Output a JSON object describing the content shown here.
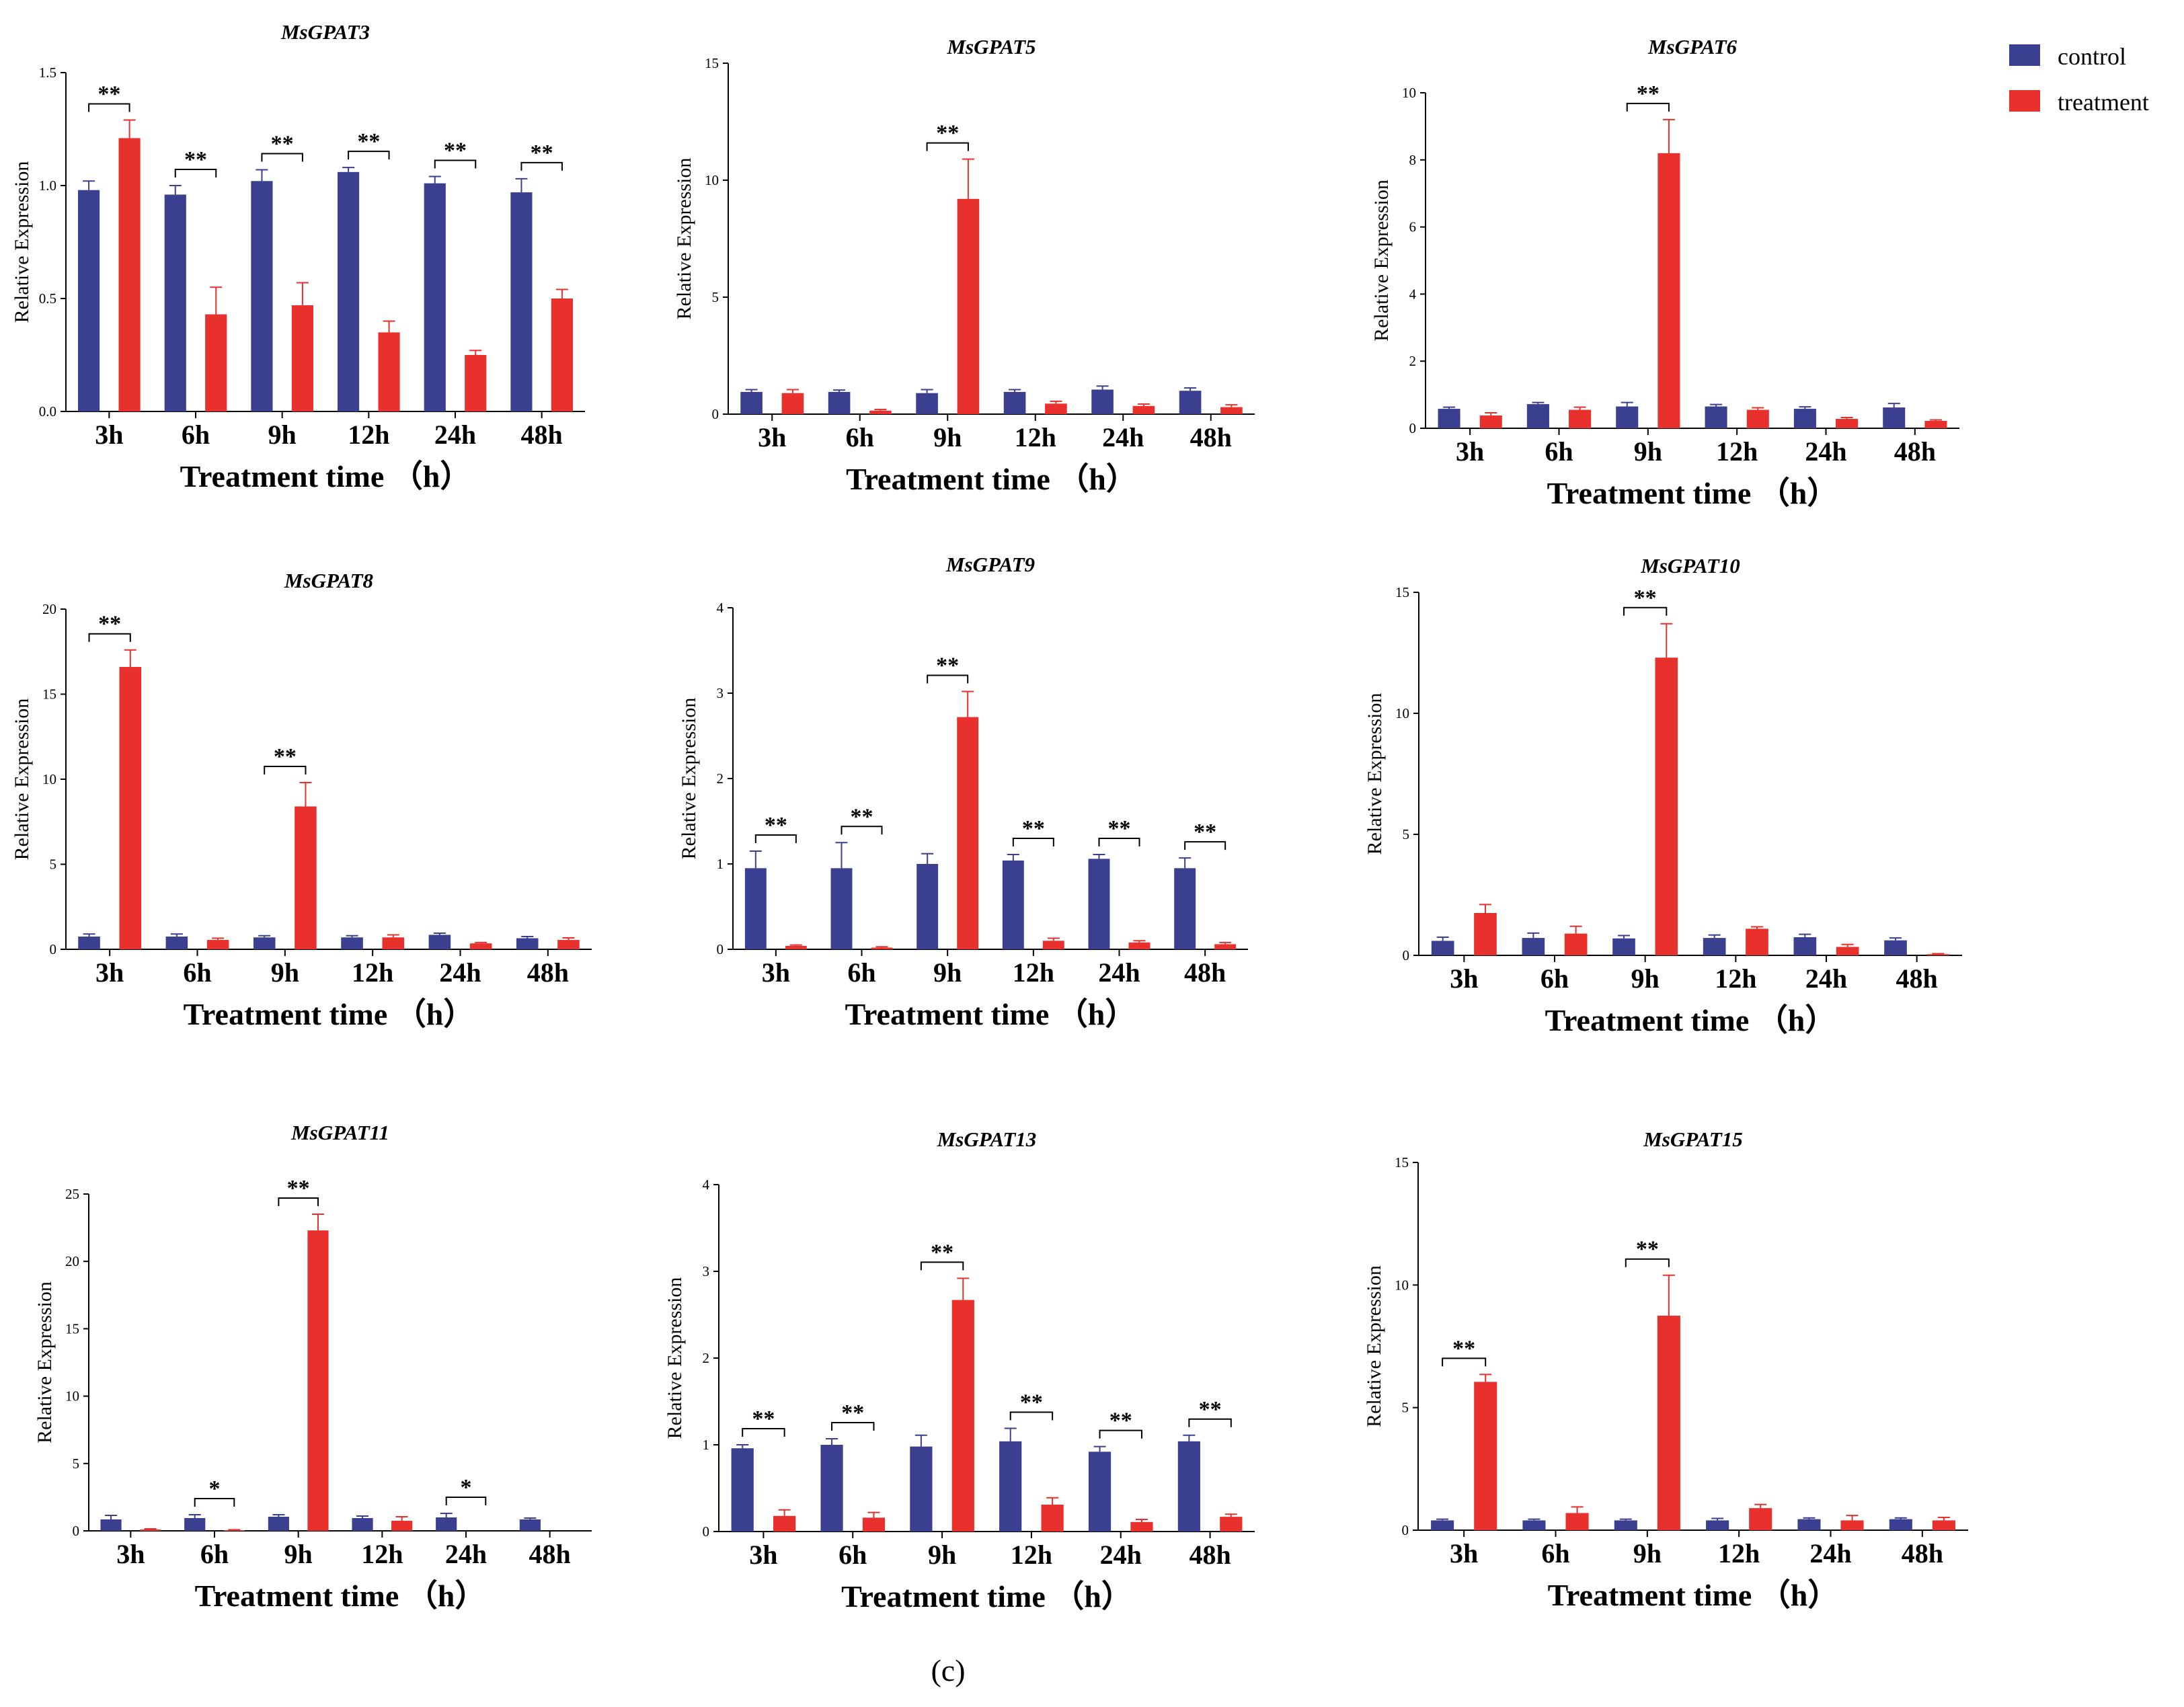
{
  "figure_label": "(c)",
  "legend": [
    {
      "name": "control",
      "color": "#3B3F8F"
    },
    {
      "name": "treatment",
      "color": "#E8312D"
    }
  ],
  "colors": {
    "control": "#3B3F8F",
    "treatment": "#E8312D",
    "axis": "#000000"
  },
  "chart_data": [
    {
      "type": "bar",
      "title": "MsGPAT3",
      "xlabel": "Treatment time （h）",
      "ylabel": "Relative Expression",
      "categories": [
        "3h",
        "6h",
        "9h",
        "12h",
        "24h",
        "48h"
      ],
      "ylim": [
        0,
        1.5
      ],
      "yticks": [
        "0.0",
        "0.5",
        "1.0",
        "1.5"
      ],
      "series": [
        {
          "name": "control",
          "values": [
            0.98,
            0.96,
            1.02,
            1.06,
            1.01,
            0.97
          ],
          "errors": [
            0.04,
            0.04,
            0.05,
            0.02,
            0.03,
            0.06
          ]
        },
        {
          "name": "treatment",
          "values": [
            1.21,
            0.43,
            0.47,
            0.35,
            0.25,
            0.5
          ],
          "errors": [
            0.08,
            0.12,
            0.1,
            0.05,
            0.02,
            0.04
          ]
        }
      ],
      "significance": [
        "**",
        "**",
        "**",
        "**",
        "**",
        "**"
      ]
    },
    {
      "type": "bar",
      "title": "MsGPAT5",
      "xlabel": "Treatment time （h）",
      "ylabel": "Relative Expression",
      "categories": [
        "3h",
        "6h",
        "9h",
        "12h",
        "24h",
        "48h"
      ],
      "ylim": [
        0,
        15
      ],
      "yticks": [
        "0",
        "5",
        "10",
        "15"
      ],
      "series": [
        {
          "name": "control",
          "values": [
            0.95,
            0.95,
            0.9,
            0.95,
            1.05,
            1.0
          ],
          "errors": [
            0.1,
            0.08,
            0.15,
            0.1,
            0.15,
            0.12
          ]
        },
        {
          "name": "treatment",
          "values": [
            0.9,
            0.15,
            9.2,
            0.45,
            0.35,
            0.3
          ],
          "errors": [
            0.15,
            0.05,
            1.7,
            0.1,
            0.08,
            0.1
          ]
        }
      ],
      "significance": [
        "",
        "",
        "**",
        "",
        "",
        ""
      ]
    },
    {
      "type": "bar",
      "title": "MsGPAT6",
      "xlabel": "Treatment time （h）",
      "ylabel": "Relative Expression",
      "categories": [
        "3h",
        "6h",
        "9h",
        "12h",
        "24h",
        "48h"
      ],
      "ylim": [
        0,
        10
      ],
      "yticks": [
        "0",
        "2",
        "4",
        "6",
        "8",
        "10"
      ],
      "series": [
        {
          "name": "control",
          "values": [
            0.58,
            0.72,
            0.65,
            0.65,
            0.58,
            0.62
          ],
          "errors": [
            0.05,
            0.05,
            0.12,
            0.06,
            0.06,
            0.12
          ]
        },
        {
          "name": "treatment",
          "values": [
            0.38,
            0.55,
            8.2,
            0.55,
            0.28,
            0.22
          ],
          "errors": [
            0.08,
            0.08,
            1.0,
            0.06,
            0.04,
            0.03
          ]
        }
      ],
      "significance": [
        "",
        "",
        "**",
        "",
        "",
        ""
      ]
    },
    {
      "type": "bar",
      "title": "MsGPAT8",
      "xlabel": "Treatment time （h）",
      "ylabel": "Relative Expression",
      "categories": [
        "3h",
        "6h",
        "9h",
        "12h",
        "24h",
        "48h"
      ],
      "ylim": [
        0,
        20
      ],
      "yticks": [
        "0",
        "5",
        "10",
        "15",
        "20"
      ],
      "series": [
        {
          "name": "control",
          "values": [
            0.75,
            0.75,
            0.7,
            0.7,
            0.85,
            0.65
          ],
          "errors": [
            0.15,
            0.15,
            0.1,
            0.1,
            0.1,
            0.1
          ]
        },
        {
          "name": "treatment",
          "values": [
            16.6,
            0.55,
            8.4,
            0.7,
            0.35,
            0.55
          ],
          "errors": [
            1.0,
            0.1,
            1.4,
            0.15,
            0.05,
            0.12
          ]
        }
      ],
      "significance": [
        "**",
        "",
        "**",
        "",
        "",
        ""
      ]
    },
    {
      "type": "bar",
      "title": "MsGPAT9",
      "xlabel": "Treatment time （h）",
      "ylabel": "Relative Expression",
      "categories": [
        "3h",
        "6h",
        "9h",
        "12h",
        "24h",
        "48h"
      ],
      "ylim": [
        0,
        4
      ],
      "yticks": [
        "0",
        "1",
        "2",
        "3",
        "4"
      ],
      "series": [
        {
          "name": "control",
          "values": [
            0.95,
            0.95,
            1.0,
            1.04,
            1.06,
            0.95
          ],
          "errors": [
            0.2,
            0.3,
            0.12,
            0.07,
            0.05,
            0.12
          ]
        },
        {
          "name": "treatment",
          "values": [
            0.04,
            0.02,
            2.72,
            0.1,
            0.08,
            0.06
          ],
          "errors": [
            0.01,
            0.01,
            0.3,
            0.03,
            0.02,
            0.02
          ]
        }
      ],
      "significance": [
        "**",
        "**",
        "**",
        "**",
        "**",
        "**"
      ]
    },
    {
      "type": "bar",
      "title": "MsGPAT10",
      "xlabel": "Treatment time （h）",
      "ylabel": "Relative Expression",
      "categories": [
        "3h",
        "6h",
        "9h",
        "12h",
        "24h",
        "48h"
      ],
      "ylim": [
        0,
        15
      ],
      "yticks": [
        "0",
        "5",
        "10",
        "15"
      ],
      "series": [
        {
          "name": "control",
          "values": [
            0.6,
            0.72,
            0.7,
            0.72,
            0.75,
            0.62
          ],
          "errors": [
            0.15,
            0.2,
            0.12,
            0.12,
            0.12,
            0.1
          ]
        },
        {
          "name": "treatment",
          "values": [
            1.75,
            0.9,
            12.3,
            1.1,
            0.35,
            0.05
          ],
          "errors": [
            0.35,
            0.3,
            1.4,
            0.08,
            0.1,
            0.02
          ]
        }
      ],
      "significance": [
        "",
        "",
        "**",
        "",
        "",
        ""
      ]
    },
    {
      "type": "bar",
      "title": "MsGPAT11",
      "xlabel": "Treatment time （h）",
      "ylabel": "Relative Expression",
      "categories": [
        "3h",
        "6h",
        "9h",
        "12h",
        "24h",
        "48h"
      ],
      "ylim": [
        0,
        25
      ],
      "yticks": [
        "0",
        "5",
        "10",
        "15",
        "20",
        "25"
      ],
      "series": [
        {
          "name": "control",
          "values": [
            0.85,
            0.95,
            1.05,
            0.95,
            1.0,
            0.85
          ],
          "errors": [
            0.3,
            0.25,
            0.15,
            0.15,
            0.3,
            0.1
          ]
        },
        {
          "name": "treatment",
          "values": [
            0.1,
            0.05,
            22.3,
            0.75,
            0.0,
            0.0
          ],
          "errors": [
            0.05,
            0.03,
            1.2,
            0.3,
            0.0,
            0.0
          ]
        }
      ],
      "significance": [
        "",
        "*",
        "**",
        "",
        "*",
        ""
      ]
    },
    {
      "type": "bar",
      "title": "MsGPAT13",
      "xlabel": "Treatment time （h）",
      "ylabel": "Relative Expression",
      "categories": [
        "3h",
        "6h",
        "9h",
        "12h",
        "24h",
        "48h"
      ],
      "ylim": [
        0,
        4
      ],
      "yticks": [
        "0",
        "1",
        "2",
        "3",
        "4"
      ],
      "series": [
        {
          "name": "control",
          "values": [
            0.96,
            1.0,
            0.98,
            1.04,
            0.92,
            1.04
          ],
          "errors": [
            0.04,
            0.07,
            0.13,
            0.15,
            0.06,
            0.07
          ]
        },
        {
          "name": "treatment",
          "values": [
            0.18,
            0.16,
            2.67,
            0.31,
            0.11,
            0.17
          ],
          "errors": [
            0.07,
            0.06,
            0.25,
            0.08,
            0.03,
            0.03
          ]
        }
      ],
      "significance": [
        "**",
        "**",
        "**",
        "**",
        "**",
        "**"
      ]
    },
    {
      "type": "bar",
      "title": "MsGPAT15",
      "xlabel": "Treatment time （h）",
      "ylabel": "Relative Expression",
      "categories": [
        "3h",
        "6h",
        "9h",
        "12h",
        "24h",
        "48h"
      ],
      "ylim": [
        0,
        15
      ],
      "yticks": [
        "0",
        "5",
        "10",
        "15"
      ],
      "series": [
        {
          "name": "control",
          "values": [
            0.4,
            0.4,
            0.4,
            0.4,
            0.45,
            0.45
          ],
          "errors": [
            0.05,
            0.05,
            0.05,
            0.08,
            0.05,
            0.05
          ]
        },
        {
          "name": "treatment",
          "values": [
            6.05,
            0.7,
            8.75,
            0.9,
            0.4,
            0.4
          ],
          "errors": [
            0.3,
            0.25,
            1.65,
            0.15,
            0.2,
            0.12
          ]
        }
      ],
      "significance": [
        "**",
        "",
        "**",
        "",
        "",
        ""
      ]
    }
  ]
}
